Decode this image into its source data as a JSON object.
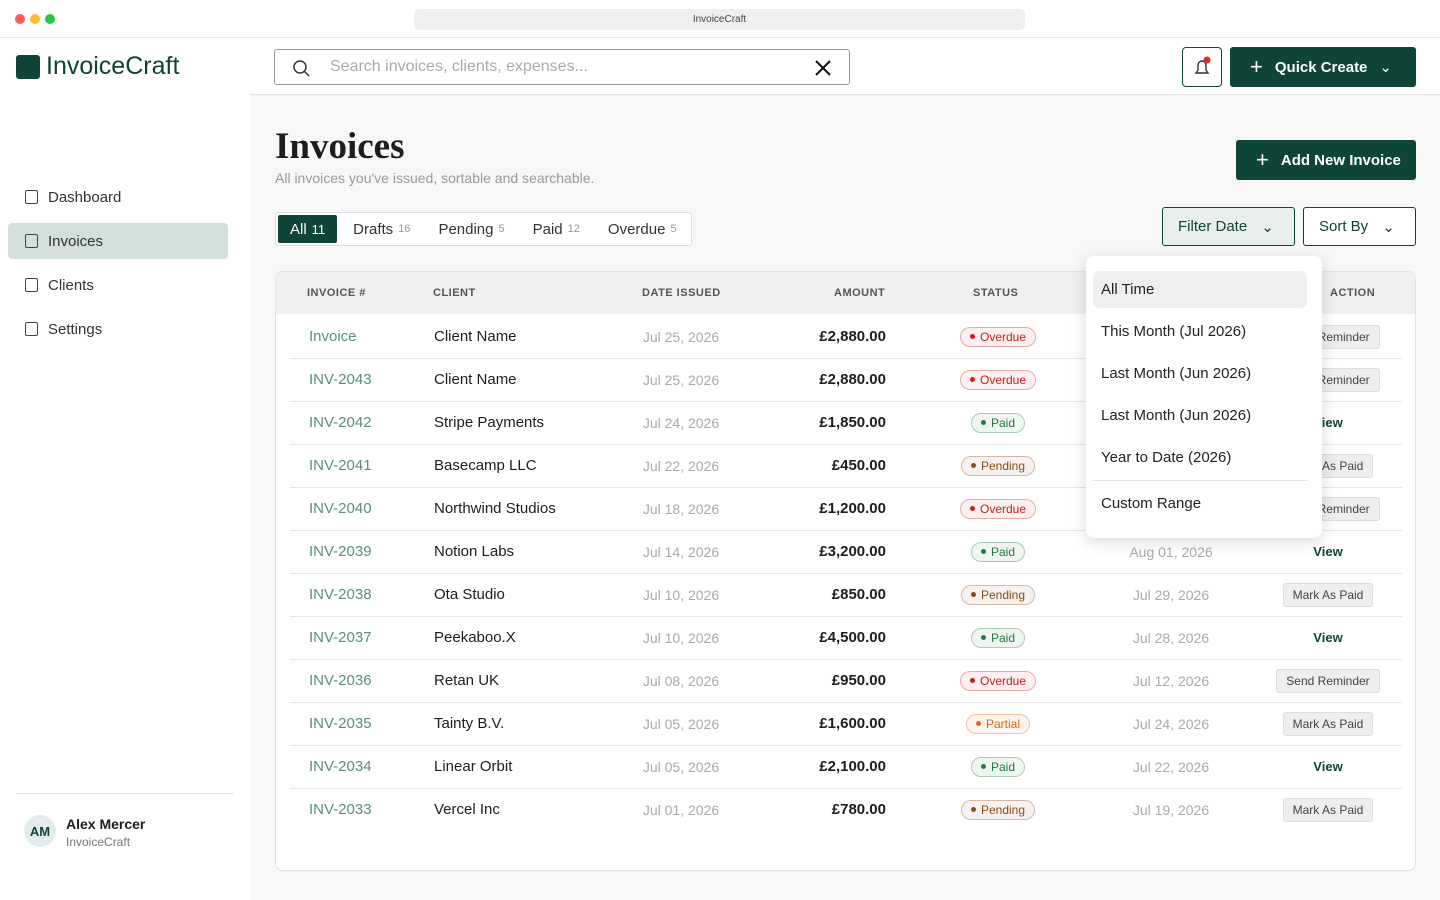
{
  "browser": {
    "url": "InvoiceCraft"
  },
  "brand": "InvoiceCraft",
  "search": {
    "placeholder": "Search invoices, clients, expenses..."
  },
  "quick_create": "Quick Create",
  "nav": [
    "Dashboard",
    "Invoices",
    "Clients",
    "Settings"
  ],
  "user": {
    "initials": "AM",
    "name": "Alex Mercer",
    "org": "InvoiceCraft"
  },
  "page": {
    "title": "Invoices",
    "subtitle": "All invoices you've issued, sortable and searchable.",
    "add_button": "Add New Invoice"
  },
  "tabs": [
    {
      "label": "All",
      "count": 11
    },
    {
      "label": "Drafts",
      "count": 16
    },
    {
      "label": "Pending",
      "count": 5
    },
    {
      "label": "Paid",
      "count": 12
    },
    {
      "label": "Overdue",
      "count": 5
    }
  ],
  "filter_date": "Filter Date",
  "sort_by": "Sort By",
  "table": {
    "columns": [
      "INVOICE #",
      "CLIENT",
      "DATE ISSUED",
      "AMOUNT",
      "STATUS",
      null,
      "ACTION"
    ],
    "rows": [
      {
        "invoice": "Invoice",
        "client": "Client Name",
        "issued": "Jul 25, 2026",
        "amount": "£2,880.00",
        "status": "Overdue",
        "status_color": "#c42318",
        "due": null,
        "action": "Send Reminder",
        "action_button": true
      },
      {
        "invoice": "INV-2043",
        "client": "Client Name",
        "issued": "Jul 25, 2026",
        "amount": "£2,880.00",
        "status": "Overdue",
        "status_color": "#c42318",
        "due": null,
        "action": "Send Reminder",
        "action_button": true
      },
      {
        "invoice": "INV-2042",
        "client": "Stripe Payments",
        "issued": "Jul 24, 2026",
        "amount": "£1,850.00",
        "status": "Paid",
        "status_color": "#1f7a3d",
        "due": null,
        "action": "View",
        "action_button": false
      },
      {
        "invoice": "INV-2041",
        "client": "Basecamp LLC",
        "issued": "Jul 22, 2026",
        "amount": "£450.00",
        "status": "Pending",
        "status_color": "#8a4b16",
        "due": null,
        "action": "Mark As Paid",
        "action_button": true
      },
      {
        "invoice": "INV-2040",
        "client": "Northwind Studios",
        "issued": "Jul 18, 2026",
        "amount": "£1,200.00",
        "status": "Overdue",
        "status_color": "#c42318",
        "due": null,
        "action": "Send Reminder",
        "action_button": true
      },
      {
        "invoice": "INV-2039",
        "client": "Notion Labs",
        "issued": "Jul 14, 2026",
        "amount": "£3,200.00",
        "status": "Paid",
        "status_color": "#1f7a3d",
        "due": "Aug 01, 2026",
        "action": "View",
        "action_button": false
      },
      {
        "invoice": "INV-2038",
        "client": "Ota Studio",
        "issued": "Jul 10, 2026",
        "amount": "£850.00",
        "status": "Pending",
        "status_color": "#8a4b16",
        "due": "Jul 29, 2026",
        "action": "Mark As Paid",
        "action_button": true
      },
      {
        "invoice": "INV-2037",
        "client": "Peekaboo.X",
        "issued": "Jul 10, 2026",
        "amount": "£4,500.00",
        "status": "Paid",
        "status_color": "#1f7a3d",
        "due": "Jul 28, 2026",
        "action": "View",
        "action_button": false
      },
      {
        "invoice": "INV-2036",
        "client": "Retan UK",
        "issued": "Jul 08, 2026",
        "amount": "£950.00",
        "status": "Overdue",
        "status_color": "#c42318",
        "due": "Jul 12, 2026",
        "action": "Send Reminder",
        "action_button": true
      },
      {
        "invoice": "INV-2035",
        "client": "Tainty B.V.",
        "issued": "Jul 05, 2026",
        "amount": "£1,600.00",
        "status": "Partial",
        "status_color": "#e0661b",
        "due": "Jul 24, 2026",
        "action": "Mark As Paid",
        "action_button": true
      },
      {
        "invoice": "INV-2034",
        "client": "Linear Orbit",
        "issued": "Jul 05, 2026",
        "amount": "£2,100.00",
        "status": "Paid",
        "status_color": "#1f7a3d",
        "due": "Jul 22, 2026",
        "action": "View",
        "action_button": false
      },
      {
        "invoice": "INV-2033",
        "client": "Vercel Inc",
        "issued": "Jul 01, 2026",
        "amount": "£780.00",
        "status": "Pending",
        "status_color": "#8a4b16",
        "due": "Jul 19, 2026",
        "action": "Mark As Paid",
        "action_button": true
      }
    ]
  },
  "date_options": [
    "All Time",
    "This Month (Jul 2026)",
    "Last Month (Jun 2026)",
    "Last Month (Jun 2026)",
    "Year to Date (2026)",
    "Custom Range"
  ]
}
